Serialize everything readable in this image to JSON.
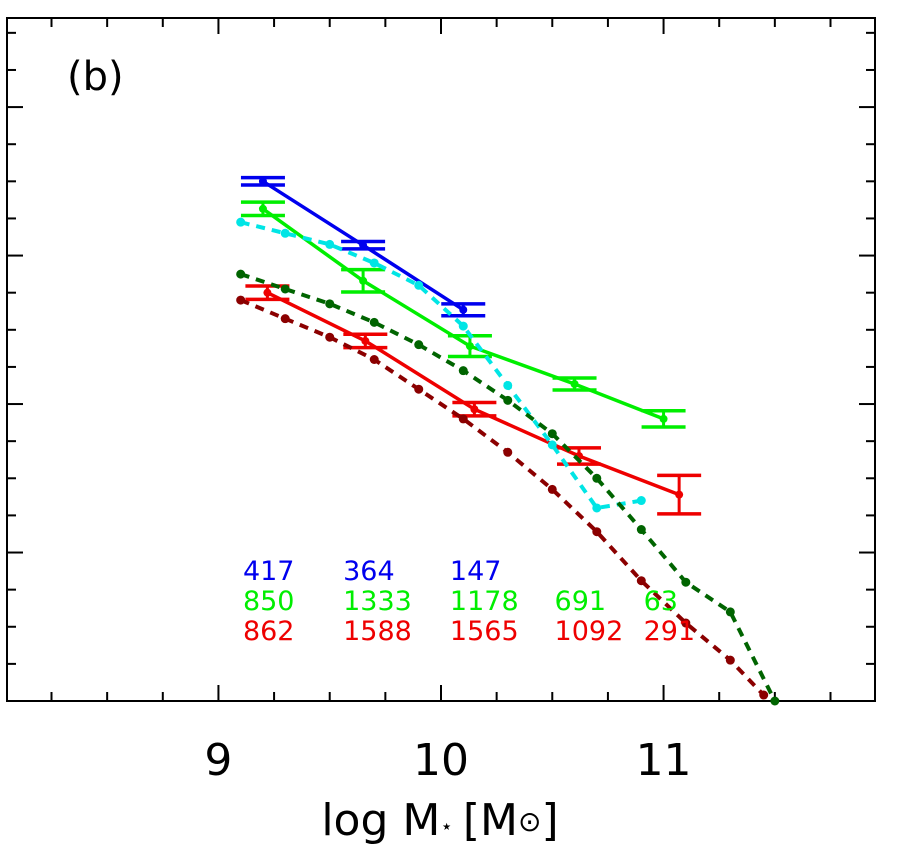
{
  "chart_data": {
    "type": "line",
    "panel_label": "(b)",
    "xlabel": "log M",
    "xlabel_star": "⋆",
    "xlabel_unit": "[M",
    "xlabel_sun": "⊙",
    "xlabel_close": "]",
    "ylabel": "",
    "xlim": [
      8.05,
      11.95
    ],
    "ylim": [
      0,
      9.2
    ],
    "x_ticks_major": [
      9,
      10,
      11
    ],
    "x_tick_labels": [
      "9",
      "10",
      "11"
    ],
    "x_ticks_minor": [
      8.25,
      8.5,
      8.75,
      9.25,
      9.5,
      9.75,
      10.25,
      10.5,
      10.75,
      11.25,
      11.5,
      11.75
    ],
    "y_ticks_major": [
      2,
      4,
      6,
      8
    ],
    "y_ticks_minor": [
      0.5,
      1,
      1.5,
      2.5,
      3,
      3.5,
      4.5,
      5,
      5.5,
      6.5,
      7,
      7.5,
      8.5,
      9
    ],
    "series": [
      {
        "color": "#0000ee",
        "style": "solid",
        "x": [
          9.2,
          9.65,
          10.1
        ],
        "y": [
          7.0,
          6.14,
          5.27
        ],
        "err": [
          0.05,
          0.05,
          0.08
        ]
      },
      {
        "color": "#00ee00",
        "style": "solid",
        "x": [
          9.2,
          9.65,
          10.13,
          10.6,
          11.0
        ],
        "y": [
          6.63,
          5.66,
          4.78,
          4.27,
          3.8
        ],
        "err": [
          0.09,
          0.15,
          0.14,
          0.08,
          0.11
        ]
      },
      {
        "color": "#ee0000",
        "style": "solid",
        "x": [
          9.22,
          9.66,
          10.15,
          10.62,
          11.07
        ],
        "y": [
          5.5,
          4.85,
          3.93,
          3.3,
          2.78
        ],
        "err": [
          0.09,
          0.09,
          0.09,
          0.11,
          0.26
        ]
      },
      {
        "color": "#00e5e5",
        "style": "dotted",
        "x": [
          9.1,
          9.3,
          9.5,
          9.7,
          9.9,
          10.1,
          10.3,
          10.5,
          10.7,
          10.9
        ],
        "y": [
          6.45,
          6.3,
          6.15,
          5.9,
          5.6,
          5.05,
          4.25,
          3.45,
          2.6,
          2.7
        ]
      },
      {
        "color": "#006400",
        "style": "dotted",
        "x": [
          9.1,
          9.3,
          9.5,
          9.7,
          9.9,
          10.1,
          10.3,
          10.5,
          10.7,
          10.9,
          11.1,
          11.3,
          11.5
        ],
        "y": [
          5.75,
          5.55,
          5.35,
          5.1,
          4.8,
          4.45,
          4.05,
          3.6,
          3.0,
          2.31,
          1.6,
          1.2,
          0
        ]
      },
      {
        "color": "#8b0000",
        "style": "dotted",
        "x": [
          9.1,
          9.3,
          9.5,
          9.7,
          9.9,
          10.1,
          10.3,
          10.5,
          10.7,
          10.9,
          11.1,
          11.3,
          11.45
        ],
        "y": [
          5.4,
          5.15,
          4.9,
          4.6,
          4.2,
          3.8,
          3.35,
          2.85,
          2.28,
          1.62,
          1.05,
          0.55,
          0.08
        ]
      }
    ],
    "counts": [
      {
        "color": "#0000ee",
        "values": [
          "417",
          "364",
          "147"
        ],
        "x": [
          9.2,
          9.65,
          10.13
        ]
      },
      {
        "color": "#00ee00",
        "values": [
          "850",
          "1333",
          "1178",
          "691",
          "63"
        ],
        "x": [
          9.2,
          9.65,
          10.13,
          10.6,
          11.0
        ]
      },
      {
        "color": "#ee0000",
        "values": [
          "862",
          "1588",
          "1565",
          "1092",
          "291"
        ],
        "x": [
          9.2,
          9.65,
          10.13,
          10.6,
          11.0
        ]
      }
    ]
  }
}
